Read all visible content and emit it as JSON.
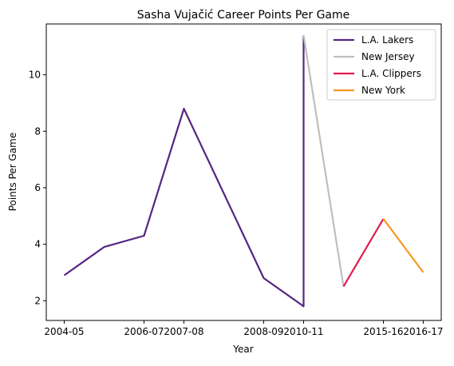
{
  "chart_data": {
    "type": "line",
    "title": "Sasha Vujačić Career Points Per Game",
    "xlabel": "Year",
    "ylabel": "Points Per Game",
    "ylim": [
      1.3,
      11.8
    ],
    "yticks": [
      2,
      4,
      6,
      8,
      10
    ],
    "x_tick_labels": [
      "2004-05",
      "2006-07",
      "2007-08",
      "2008-09",
      "2010-11",
      "2015-16",
      "2016-17"
    ],
    "x_tick_positions": [
      0,
      2,
      3,
      5,
      6,
      8,
      9
    ],
    "grid": false,
    "legend_position": "top-right",
    "series": [
      {
        "name": "L.A. Lakers",
        "color": "#552583",
        "x": [
          0,
          1,
          2,
          3,
          4,
          5,
          6,
          6
        ],
        "y": [
          2.9,
          3.9,
          4.3,
          8.8,
          5.8,
          2.8,
          1.8,
          11.4
        ]
      },
      {
        "name": "New Jersey",
        "color": "#bfbfbf",
        "x": [
          6,
          7
        ],
        "y": [
          11.4,
          2.5
        ]
      },
      {
        "name": "L.A. Clippers",
        "color": "#e31a4f",
        "x": [
          7,
          8
        ],
        "y": [
          2.5,
          4.9
        ]
      },
      {
        "name": "New York",
        "color": "#f7971e",
        "x": [
          8,
          9
        ],
        "y": [
          4.9,
          3.0
        ]
      }
    ]
  }
}
